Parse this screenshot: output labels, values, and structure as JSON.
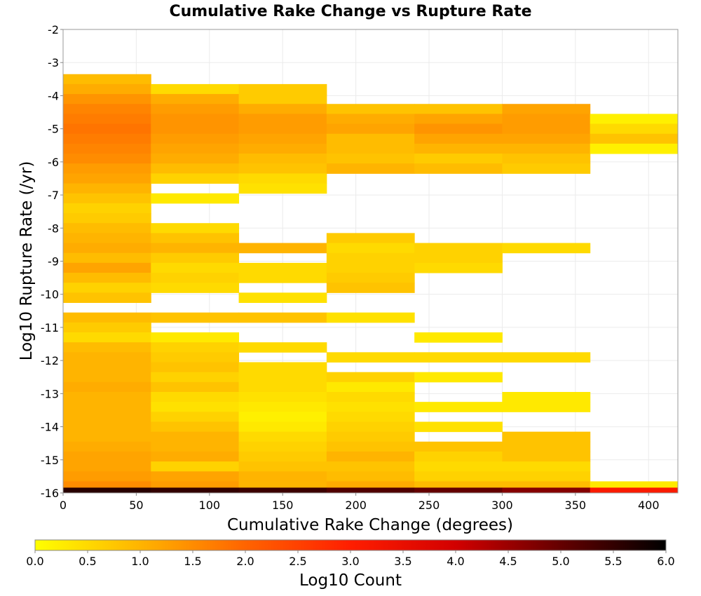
{
  "chart_data": {
    "type": "heatmap",
    "title": "Cumulative Rake Change vs Rupture Rate",
    "xlabel": "Cumulative Rake Change (degrees)",
    "ylabel": "Log10 Rupture Rate (/yr)",
    "xlim": [
      0,
      420
    ],
    "ylim": [
      -16,
      -2
    ],
    "xticks": [
      0,
      50,
      100,
      150,
      200,
      250,
      300,
      350,
      400
    ],
    "yticks": [
      -2,
      -3,
      -4,
      -5,
      -6,
      -7,
      -8,
      -9,
      -10,
      -11,
      -12,
      -13,
      -14,
      -15,
      -16
    ],
    "grid": true,
    "colorbar": {
      "label": "Log10 Count",
      "range": [
        0.0,
        6.0
      ],
      "ticks": [
        "0.0",
        "0.5",
        "1.0",
        "1.5",
        "2.0",
        "2.5",
        "3.0",
        "3.5",
        "4.0",
        "4.5",
        "5.0",
        "5.5",
        "6.0"
      ],
      "colors": [
        "#ffff00",
        "#ffb400",
        "#ff6400",
        "#ff1e00",
        "#d20000",
        "#640000",
        "#000000"
      ]
    },
    "bin_width_x": 60,
    "bin_height_y": 0.3,
    "cells": [
      [
        0,
        -3.5,
        0.9
      ],
      [
        0,
        -3.8,
        1.1
      ],
      [
        0,
        -4.1,
        1.4
      ],
      [
        0,
        -4.4,
        1.6
      ],
      [
        0,
        -4.7,
        1.7
      ],
      [
        0,
        -5.0,
        1.8
      ],
      [
        0,
        -5.3,
        1.7
      ],
      [
        0,
        -5.6,
        1.6
      ],
      [
        0,
        -5.9,
        1.5
      ],
      [
        0,
        -6.2,
        1.3
      ],
      [
        0,
        -6.5,
        1.2
      ],
      [
        0,
        -6.8,
        1.0
      ],
      [
        0,
        -7.1,
        0.8
      ],
      [
        0,
        -7.4,
        0.6
      ],
      [
        0,
        -7.7,
        0.7
      ],
      [
        0,
        -8.0,
        0.9
      ],
      [
        0,
        -8.3,
        1.0
      ],
      [
        0,
        -8.6,
        1.1
      ],
      [
        0,
        -8.9,
        0.9
      ],
      [
        0,
        -9.2,
        1.2
      ],
      [
        0,
        -9.5,
        0.9
      ],
      [
        0,
        -9.8,
        0.6
      ],
      [
        0,
        -10.1,
        0.8
      ],
      [
        0,
        -10.7,
        0.9
      ],
      [
        0,
        -11.0,
        0.7
      ],
      [
        0,
        -11.3,
        0.5
      ],
      [
        0,
        -11.6,
        0.9
      ],
      [
        0,
        -11.9,
        1.0
      ],
      [
        0,
        -12.2,
        1.0
      ],
      [
        0,
        -12.5,
        1.0
      ],
      [
        0,
        -12.8,
        1.1
      ],
      [
        0,
        -13.1,
        1.0
      ],
      [
        0,
        -13.4,
        1.0
      ],
      [
        0,
        -13.7,
        1.0
      ],
      [
        0,
        -14.0,
        1.0
      ],
      [
        0,
        -14.3,
        1.0
      ],
      [
        0,
        -14.6,
        1.1
      ],
      [
        0,
        -14.9,
        1.2
      ],
      [
        0,
        -15.2,
        1.2
      ],
      [
        0,
        -15.5,
        1.3
      ],
      [
        0,
        -15.8,
        1.5
      ],
      [
        60,
        -3.8,
        0.5
      ],
      [
        60,
        -4.1,
        1.1
      ],
      [
        60,
        -4.4,
        1.3
      ],
      [
        60,
        -4.7,
        1.4
      ],
      [
        60,
        -5.0,
        1.4
      ],
      [
        60,
        -5.3,
        1.3
      ],
      [
        60,
        -5.6,
        1.2
      ],
      [
        60,
        -5.9,
        1.1
      ],
      [
        60,
        -6.2,
        0.9
      ],
      [
        60,
        -6.5,
        0.6
      ],
      [
        60,
        -7.1,
        0.3
      ],
      [
        60,
        -8.0,
        0.5
      ],
      [
        60,
        -8.3,
        0.8
      ],
      [
        60,
        -8.6,
        1.0
      ],
      [
        60,
        -8.9,
        0.7
      ],
      [
        60,
        -9.2,
        0.5
      ],
      [
        60,
        -9.5,
        0.6
      ],
      [
        60,
        -9.8,
        0.5
      ],
      [
        60,
        -10.7,
        0.8
      ],
      [
        60,
        -11.3,
        0.3
      ],
      [
        60,
        -11.6,
        0.6
      ],
      [
        60,
        -11.9,
        0.7
      ],
      [
        60,
        -12.2,
        0.8
      ],
      [
        60,
        -12.5,
        0.6
      ],
      [
        60,
        -12.8,
        0.8
      ],
      [
        60,
        -13.1,
        0.5
      ],
      [
        60,
        -13.4,
        0.4
      ],
      [
        60,
        -13.7,
        0.6
      ],
      [
        60,
        -14.0,
        0.8
      ],
      [
        60,
        -14.3,
        1.0
      ],
      [
        60,
        -14.6,
        1.0
      ],
      [
        60,
        -14.9,
        1.1
      ],
      [
        60,
        -15.2,
        0.6
      ],
      [
        60,
        -15.5,
        1.2
      ],
      [
        60,
        -15.8,
        1.3
      ],
      [
        120,
        -3.8,
        0.7
      ],
      [
        120,
        -4.1,
        0.7
      ],
      [
        120,
        -4.4,
        1.1
      ],
      [
        120,
        -4.7,
        1.3
      ],
      [
        120,
        -5.0,
        1.3
      ],
      [
        120,
        -5.3,
        1.2
      ],
      [
        120,
        -5.6,
        1.1
      ],
      [
        120,
        -5.9,
        0.9
      ],
      [
        120,
        -6.2,
        0.8
      ],
      [
        120,
        -6.5,
        0.5
      ],
      [
        120,
        -6.8,
        0.4
      ],
      [
        120,
        -8.6,
        1.0
      ],
      [
        120,
        -9.2,
        0.5
      ],
      [
        120,
        -9.5,
        0.5
      ],
      [
        120,
        -10.1,
        0.4
      ],
      [
        120,
        -10.7,
        0.8
      ],
      [
        120,
        -11.6,
        0.5
      ],
      [
        120,
        -12.2,
        0.5
      ],
      [
        120,
        -12.5,
        0.5
      ],
      [
        120,
        -12.8,
        0.5
      ],
      [
        120,
        -13.1,
        0.4
      ],
      [
        120,
        -13.4,
        0.3
      ],
      [
        120,
        -13.7,
        0.2
      ],
      [
        120,
        -14.0,
        0.3
      ],
      [
        120,
        -14.3,
        0.5
      ],
      [
        120,
        -14.6,
        0.6
      ],
      [
        120,
        -14.9,
        0.7
      ],
      [
        120,
        -15.2,
        0.8
      ],
      [
        120,
        -15.5,
        1.0
      ],
      [
        120,
        -15.8,
        1.0
      ],
      [
        180,
        -4.4,
        0.8
      ],
      [
        180,
        -4.7,
        1.1
      ],
      [
        180,
        -5.0,
        1.2
      ],
      [
        180,
        -5.3,
        0.9
      ],
      [
        180,
        -5.6,
        0.9
      ],
      [
        180,
        -5.9,
        0.8
      ],
      [
        180,
        -6.2,
        1.0
      ],
      [
        180,
        -8.3,
        0.7
      ],
      [
        180,
        -8.6,
        0.5
      ],
      [
        180,
        -8.9,
        0.6
      ],
      [
        180,
        -9.2,
        0.6
      ],
      [
        180,
        -9.5,
        0.7
      ],
      [
        180,
        -9.8,
        0.8
      ],
      [
        180,
        -10.7,
        0.4
      ],
      [
        180,
        -11.9,
        0.5
      ],
      [
        180,
        -12.5,
        0.6
      ],
      [
        180,
        -12.8,
        0.3
      ],
      [
        180,
        -13.1,
        0.5
      ],
      [
        180,
        -13.4,
        0.4
      ],
      [
        180,
        -13.7,
        0.5
      ],
      [
        180,
        -14.0,
        0.6
      ],
      [
        180,
        -14.3,
        0.7
      ],
      [
        180,
        -14.6,
        0.8
      ],
      [
        180,
        -14.9,
        1.0
      ],
      [
        180,
        -15.2,
        0.8
      ],
      [
        180,
        -15.5,
        0.9
      ],
      [
        180,
        -15.8,
        1.1
      ],
      [
        240,
        -4.4,
        0.8
      ],
      [
        240,
        -4.7,
        1.2
      ],
      [
        240,
        -5.0,
        1.4
      ],
      [
        240,
        -5.3,
        1.2
      ],
      [
        240,
        -5.6,
        1.0
      ],
      [
        240,
        -5.9,
        0.7
      ],
      [
        240,
        -6.2,
        0.9
      ],
      [
        240,
        -8.6,
        0.6
      ],
      [
        240,
        -8.9,
        0.6
      ],
      [
        240,
        -9.2,
        0.5
      ],
      [
        240,
        -11.3,
        0.3
      ],
      [
        240,
        -11.9,
        0.5
      ],
      [
        240,
        -12.5,
        0.3
      ],
      [
        240,
        -13.4,
        0.3
      ],
      [
        240,
        -14.0,
        0.4
      ],
      [
        240,
        -14.6,
        0.8
      ],
      [
        240,
        -14.9,
        0.6
      ],
      [
        240,
        -15.2,
        0.5
      ],
      [
        240,
        -15.5,
        0.6
      ],
      [
        240,
        -15.8,
        0.9
      ],
      [
        300,
        -4.4,
        1.2
      ],
      [
        300,
        -4.7,
        1.3
      ],
      [
        300,
        -5.0,
        1.3
      ],
      [
        300,
        -5.3,
        1.2
      ],
      [
        300,
        -5.6,
        1.0
      ],
      [
        300,
        -5.9,
        0.8
      ],
      [
        300,
        -6.2,
        0.7
      ],
      [
        300,
        -8.6,
        0.5
      ],
      [
        300,
        -11.9,
        0.5
      ],
      [
        300,
        -13.1,
        0.3
      ],
      [
        300,
        -13.4,
        0.3
      ],
      [
        300,
        -14.3,
        0.8
      ],
      [
        300,
        -14.6,
        0.8
      ],
      [
        300,
        -14.9,
        0.8
      ],
      [
        300,
        -15.2,
        0.5
      ],
      [
        300,
        -15.5,
        0.6
      ],
      [
        300,
        -15.8,
        0.9
      ],
      [
        360,
        -4.7,
        0.2
      ],
      [
        360,
        -5.0,
        0.5
      ],
      [
        360,
        -5.3,
        0.8
      ],
      [
        360,
        -5.6,
        0.2
      ],
      [
        360,
        -15.8,
        0.3
      ]
    ],
    "bottom_row": {
      "y_center": -15.92,
      "height": 0.16,
      "values": [
        [
          0,
          5.6
        ],
        [
          60,
          5.5
        ],
        [
          120,
          5.4
        ],
        [
          180,
          5.2
        ],
        [
          240,
          5.0
        ],
        [
          300,
          4.7
        ],
        [
          360,
          3.1
        ]
      ]
    }
  }
}
